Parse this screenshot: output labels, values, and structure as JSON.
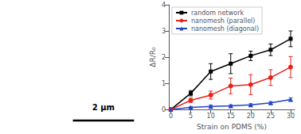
{
  "chart_data": {
    "type": "line",
    "xlabel": "Strain on PDMS (%)",
    "ylabel": "ΔR/R₀",
    "annotation": "2 μm",
    "x": [
      0,
      5,
      10,
      15,
      20,
      25,
      30
    ],
    "series": [
      {
        "name": "random network",
        "color": "#000000",
        "marker": "square",
        "values": [
          0.0,
          0.62,
          1.45,
          1.75,
          2.05,
          2.28,
          2.7
        ],
        "errors": [
          0.0,
          0.1,
          0.3,
          0.38,
          0.18,
          0.22,
          0.3
        ]
      },
      {
        "name": "nanomesh (parallel)",
        "color": "#e8221a",
        "marker": "circle",
        "values": [
          0.0,
          0.35,
          0.55,
          0.9,
          0.95,
          1.22,
          1.62
        ],
        "errors": [
          0.0,
          0.08,
          0.15,
          0.3,
          0.38,
          0.3,
          0.4
        ]
      },
      {
        "name": "nanomesh (diagonal)",
        "color": "#2343c4",
        "marker": "triangle",
        "values": [
          0.0,
          0.08,
          0.12,
          0.14,
          0.18,
          0.25,
          0.38
        ],
        "errors": [
          0.0,
          0.03,
          0.05,
          0.04,
          0.04,
          0.05,
          0.06
        ]
      }
    ],
    "xlim": [
      -0.5,
      31
    ],
    "xticks": [
      0,
      5,
      10,
      15,
      20,
      25,
      30
    ],
    "ylim": [
      0,
      4.0
    ],
    "yticks": [
      0.0,
      1.0,
      2.0,
      3.0,
      4.0
    ],
    "grid": false,
    "legend": "upper left"
  }
}
